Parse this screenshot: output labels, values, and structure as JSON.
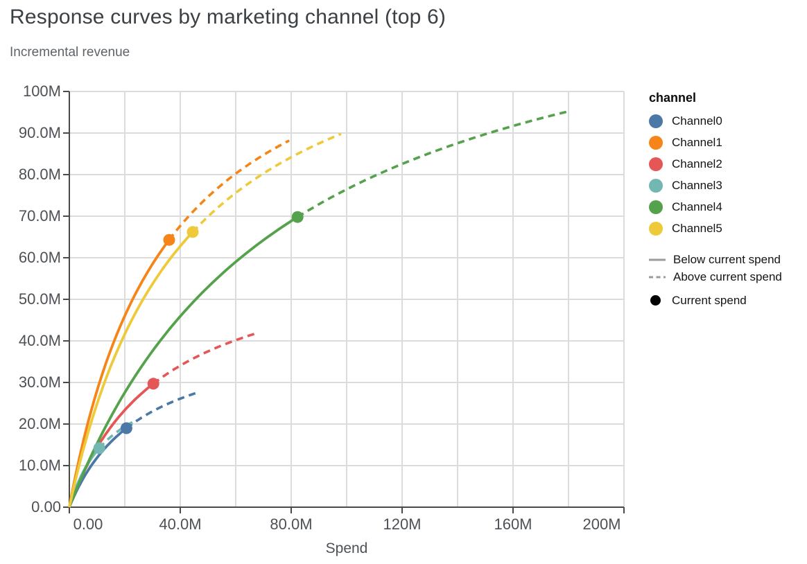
{
  "title": "Response curves by marketing channel (top 6)",
  "subtitle": "Incremental revenue",
  "axes": {
    "x": {
      "title": "Spend",
      "tick_labels": [
        "0.00",
        "40.0M",
        "80.0M",
        "120M",
        "160M",
        "200M"
      ],
      "tick_values_m": [
        0,
        40,
        80,
        120,
        160,
        200
      ],
      "gridline_step_m": 20
    },
    "y": {
      "tick_labels": [
        "0.00",
        "10.0M",
        "20.0M",
        "30.0M",
        "40.0M",
        "50.0M",
        "60.0M",
        "70.0M",
        "80.0M",
        "90.0M",
        "100M"
      ],
      "tick_values_m": [
        0,
        10,
        20,
        30,
        40,
        50,
        60,
        70,
        80,
        90,
        100
      ],
      "gridline_step_m": 10
    }
  },
  "legend": {
    "title": "channel",
    "line_styles": [
      {
        "label": "Below current spend",
        "style": "solid"
      },
      {
        "label": "Above current spend",
        "style": "dashed"
      }
    ],
    "marker": {
      "label": "Current spend",
      "color": "#000000"
    }
  },
  "colors": {
    "grid": "#dcdcdc",
    "axis": "#4a4a4a",
    "legend_line": "#9b9b9b"
  },
  "chart_data": {
    "type": "line",
    "title": "Response curves by marketing channel (top 6)",
    "xlabel": "Spend",
    "ylabel": "Incremental revenue",
    "xlim_m": [
      0,
      200
    ],
    "ylim_m": [
      0,
      100
    ],
    "grid": true,
    "legend_position": "right",
    "units": "millions of currency (M)",
    "series_semantics": "Each channel is a saturating response curve through the origin; solid segment = below current spend, dashed segment = above current spend, dot = current spend point.",
    "series": [
      {
        "name": "Channel0",
        "color": "#4c78a8",
        "current_spend_m": {
          "x": 20.6,
          "y": 19.0
        },
        "curve_end_m": {
          "x": 46.8,
          "y": 27.7
        }
      },
      {
        "name": "Channel1",
        "color": "#f58518",
        "current_spend_m": {
          "x": 36.0,
          "y": 64.3
        },
        "curve_end_m": {
          "x": 79.3,
          "y": 88.2
        }
      },
      {
        "name": "Channel2",
        "color": "#e45756",
        "current_spend_m": {
          "x": 30.3,
          "y": 29.7
        },
        "curve_end_m": {
          "x": 66.8,
          "y": 41.7
        }
      },
      {
        "name": "Channel3",
        "color": "#72b7b2",
        "current_spend_m": {
          "x": 10.8,
          "y": 14.2
        },
        "curve_end_m": {
          "x": 23.8,
          "y": 20.8
        }
      },
      {
        "name": "Channel4",
        "color": "#54a24b",
        "current_spend_m": {
          "x": 82.3,
          "y": 69.8
        },
        "curve_end_m": {
          "x": 180.5,
          "y": 95.3
        }
      },
      {
        "name": "Channel5",
        "color": "#eeca3b",
        "current_spend_m": {
          "x": 44.5,
          "y": 66.2
        },
        "curve_end_m": {
          "x": 98.0,
          "y": 89.8
        }
      }
    ]
  }
}
